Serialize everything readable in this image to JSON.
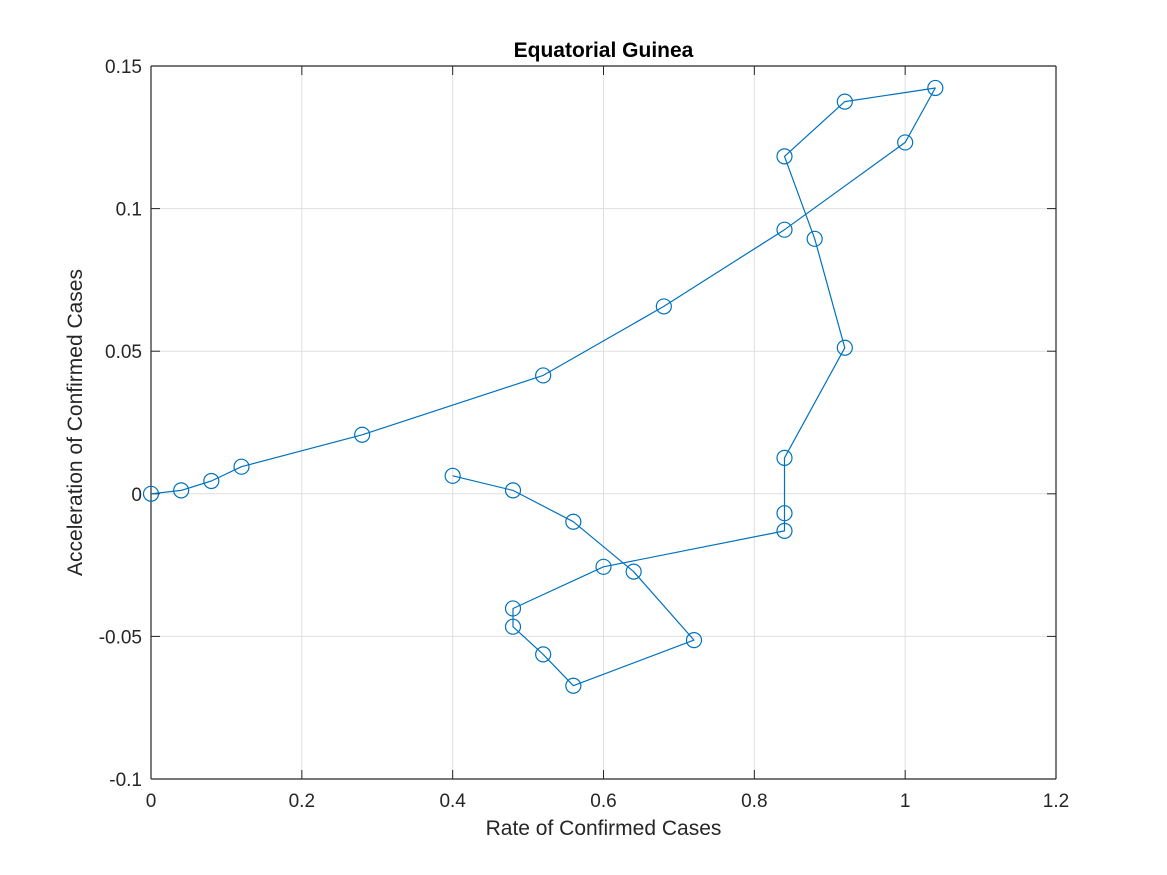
{
  "chart_data": {
    "type": "line",
    "title": "Equatorial Guinea",
    "xlabel": "Rate of Confirmed Cases",
    "ylabel": "Acceleration of Confirmed Cases",
    "xlim": [
      0,
      1.2
    ],
    "ylim": [
      -0.1,
      0.15
    ],
    "xticks": [
      0,
      0.2,
      0.4,
      0.6,
      0.8,
      1,
      1.2
    ],
    "xtick_labels": [
      "0",
      "0.2",
      "0.4",
      "0.6",
      "0.8",
      "1",
      "1.2"
    ],
    "yticks": [
      -0.1,
      -0.05,
      0,
      0.05,
      0.1,
      0.15
    ],
    "ytick_labels": [
      "-0.1",
      "-0.05",
      "0",
      "0.05",
      "0.1",
      "0.15"
    ],
    "grid": true,
    "marker": "circle",
    "series": [
      {
        "color": "#0072BD",
        "x": [
          0,
          0.04,
          0.08,
          0.12,
          0.28,
          0.52,
          0.68,
          0.84,
          1.0,
          1.04,
          0.92,
          0.84,
          0.88,
          0.92,
          0.84,
          0.84,
          0.84,
          0.6,
          0.48,
          0.48,
          0.52,
          0.56,
          0.72,
          0.64,
          0.56,
          0.48,
          0.4
        ],
        "y": [
          0,
          0.0012,
          0.0045,
          0.0095,
          0.0207,
          0.0415,
          0.0657,
          0.0926,
          0.1232,
          0.1423,
          0.1375,
          0.1183,
          0.0894,
          0.0512,
          0.0126,
          -0.0068,
          -0.013,
          -0.0256,
          -0.0402,
          -0.0466,
          -0.0563,
          -0.0673,
          -0.0513,
          -0.0273,
          -0.0098,
          0.0012,
          0.0063
        ]
      }
    ]
  }
}
